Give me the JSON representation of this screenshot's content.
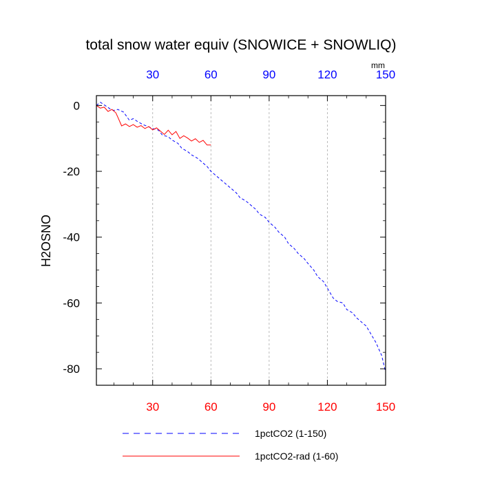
{
  "chart_data": {
    "type": "line",
    "title": "total snow water equiv (SNOWICE + SNOWLIQ)",
    "ylabel": "H2OSNO",
    "units": "mm",
    "xlim": [
      1,
      150
    ],
    "ylim": [
      -85,
      3
    ],
    "x_ticks": [
      30,
      60,
      90,
      120,
      150
    ],
    "y_ticks": [
      0,
      -20,
      -40,
      -60,
      -80
    ],
    "grid": "vertical-dashed",
    "legend_position": "bottom",
    "colors": {
      "bottom_tick_labels": "#ff0000",
      "top_tick_labels": "#0000ff",
      "grid": "#aaaaaa"
    },
    "series": [
      {
        "name": "1pctCO2 (1-150)",
        "color": "#0000ff",
        "dash": "dashed",
        "x": [
          1,
          3,
          5,
          8,
          10,
          12,
          15,
          18,
          20,
          22,
          25,
          28,
          30,
          33,
          35,
          38,
          40,
          43,
          45,
          48,
          50,
          53,
          55,
          58,
          60,
          63,
          65,
          68,
          70,
          73,
          75,
          78,
          80,
          83,
          85,
          88,
          90,
          93,
          95,
          98,
          100,
          103,
          105,
          108,
          110,
          113,
          115,
          118,
          120,
          123,
          125,
          128,
          130,
          133,
          135,
          138,
          140,
          143,
          145,
          148,
          150
        ],
        "y": [
          0,
          1,
          0.2,
          -1,
          -1.5,
          -1.2,
          -2,
          -4.5,
          -4,
          -4.8,
          -5.8,
          -6.5,
          -7,
          -7.5,
          -9,
          -9.5,
          -10.5,
          -11.5,
          -13,
          -14,
          -15,
          -16,
          -17,
          -18.5,
          -20,
          -21.5,
          -22.5,
          -24,
          -25,
          -26.5,
          -28,
          -29,
          -30,
          -31.5,
          -33,
          -34,
          -35.5,
          -37,
          -38.5,
          -40,
          -42,
          -43.5,
          -45,
          -46.5,
          -48,
          -50,
          -52,
          -53.5,
          -55.5,
          -58.5,
          -59.5,
          -60,
          -62,
          -63,
          -64.5,
          -66,
          -67,
          -70,
          -72,
          -76,
          -81
        ]
      },
      {
        "name": "1pctCO2-rad (1-60)",
        "color": "#ff0000",
        "dash": "solid",
        "x": [
          1,
          3,
          5,
          7,
          9,
          11,
          12,
          14,
          16,
          18,
          20,
          22,
          24,
          26,
          28,
          30,
          32,
          34,
          36,
          38,
          40,
          42,
          44,
          46,
          48,
          50,
          52,
          54,
          56,
          58,
          60
        ],
        "y": [
          0,
          -0.8,
          -0.5,
          -1.8,
          -1.2,
          -2.2,
          -3.5,
          -6.2,
          -5.6,
          -6.4,
          -5.8,
          -6.6,
          -6.1,
          -7,
          -6.4,
          -7.4,
          -6.8,
          -7.8,
          -8.8,
          -7.5,
          -8.9,
          -7.9,
          -10,
          -9.2,
          -9.9,
          -10.8,
          -10.1,
          -11.2,
          -10.6,
          -12,
          -12
        ]
      }
    ]
  }
}
